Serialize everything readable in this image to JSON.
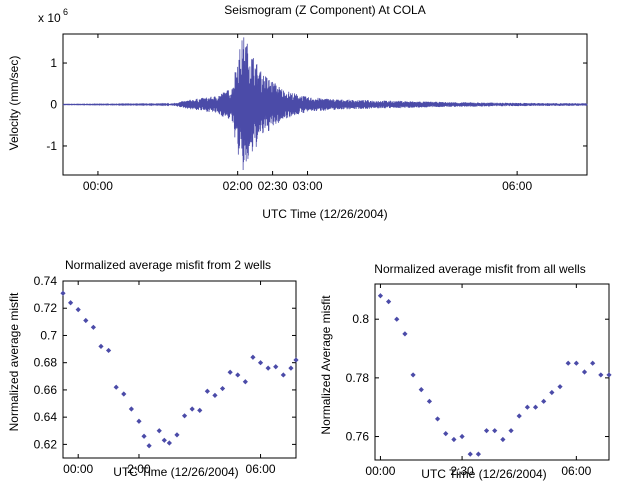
{
  "chart_data": [
    {
      "type": "line",
      "title": "Seismogram (Z Component) At COLA",
      "xlabel": "UTC Time (12/26/2004)",
      "ylabel": "Velocity (mm/sec)",
      "y_exponent_label": "x 10",
      "y_exponent": "6",
      "xlim": [
        "23:30",
        "07:00"
      ],
      "ylim": [
        -1.7,
        1.7
      ],
      "x_ticks": [
        "00:00",
        "02:00",
        "02:30",
        "03:00",
        "06:00"
      ],
      "y_ticks": [
        "-1",
        "0",
        "1"
      ],
      "series": [
        {
          "values_description_only": false,
          "color": "#4b4ba8",
          "envelope": {
            "x": [
              "23:30",
              "01:00",
              "01:20",
              "01:40",
              "01:55",
              "02:00",
              "02:05",
              "02:10",
              "02:20",
              "02:40",
              "03:00",
              "03:30",
              "04:00",
              "05:00",
              "06:00",
              "07:00"
            ],
            "amplitude_1e6": [
              0.005,
              0.01,
              0.12,
              0.2,
              0.4,
              1.2,
              1.7,
              1.4,
              0.8,
              0.35,
              0.18,
              0.12,
              0.1,
              0.06,
              0.04,
              0.03
            ]
          }
        }
      ]
    },
    {
      "type": "scatter",
      "title": "Normalized average misfit from 2 wells",
      "xlabel": "UTC Time (12/26/2004)",
      "ylabel": "Normalized average misfit",
      "xlim": [
        "23:30",
        "07:10"
      ],
      "ylim": [
        0.61,
        0.74
      ],
      "x_ticks": [
        "00:00",
        "2:00",
        "06:00"
      ],
      "y_ticks": [
        "0.62",
        "0.64",
        "0.66",
        "0.68",
        "0.7",
        "0.72",
        "0.74"
      ],
      "color": "#4b4ba8",
      "points": [
        [
          "23:30",
          0.731
        ],
        [
          "23:45",
          0.724
        ],
        [
          "00:00",
          0.719
        ],
        [
          "00:15",
          0.711
        ],
        [
          "00:30",
          0.706
        ],
        [
          "00:45",
          0.692
        ],
        [
          "01:00",
          0.689
        ],
        [
          "01:15",
          0.662
        ],
        [
          "01:30",
          0.657
        ],
        [
          "01:45",
          0.646
        ],
        [
          "02:00",
          0.637
        ],
        [
          "02:10",
          0.626
        ],
        [
          "02:20",
          0.619
        ],
        [
          "02:40",
          0.63
        ],
        [
          "02:50",
          0.623
        ],
        [
          "03:00",
          0.621
        ],
        [
          "03:15",
          0.627
        ],
        [
          "03:30",
          0.641
        ],
        [
          "03:45",
          0.646
        ],
        [
          "04:00",
          0.645
        ],
        [
          "04:15",
          0.659
        ],
        [
          "04:30",
          0.656
        ],
        [
          "04:45",
          0.661
        ],
        [
          "05:00",
          0.673
        ],
        [
          "05:15",
          0.671
        ],
        [
          "05:30",
          0.666
        ],
        [
          "05:45",
          0.684
        ],
        [
          "06:00",
          0.68
        ],
        [
          "06:15",
          0.676
        ],
        [
          "06:30",
          0.677
        ],
        [
          "06:45",
          0.671
        ],
        [
          "07:00",
          0.676
        ],
        [
          "07:10",
          0.682
        ]
      ]
    },
    {
      "type": "scatter",
      "title": "Normalized average misfit from all wells",
      "xlabel": "UTC Time (12/26/2004)",
      "ylabel": "Normalized Average misfit",
      "xlim": [
        "23:50",
        "07:00"
      ],
      "ylim": [
        0.752,
        0.812
      ],
      "x_ticks": [
        "00:00",
        "2:30",
        "06:00"
      ],
      "y_ticks": [
        "0.76",
        "0.78",
        "0.8"
      ],
      "color": "#4b4ba8",
      "points": [
        [
          "00:00",
          0.808
        ],
        [
          "00:15",
          0.806
        ],
        [
          "00:30",
          0.8
        ],
        [
          "00:45",
          0.795
        ],
        [
          "01:00",
          0.781
        ],
        [
          "01:15",
          0.776
        ],
        [
          "01:30",
          0.772
        ],
        [
          "01:45",
          0.766
        ],
        [
          "02:00",
          0.761
        ],
        [
          "02:15",
          0.759
        ],
        [
          "02:30",
          0.76
        ],
        [
          "02:45",
          0.754
        ],
        [
          "03:00",
          0.754
        ],
        [
          "03:15",
          0.762
        ],
        [
          "03:30",
          0.762
        ],
        [
          "03:45",
          0.759
        ],
        [
          "04:00",
          0.762
        ],
        [
          "04:15",
          0.767
        ],
        [
          "04:30",
          0.77
        ],
        [
          "04:45",
          0.77
        ],
        [
          "05:00",
          0.772
        ],
        [
          "05:15",
          0.775
        ],
        [
          "05:30",
          0.777
        ],
        [
          "05:45",
          0.785
        ],
        [
          "06:00",
          0.785
        ],
        [
          "06:15",
          0.782
        ],
        [
          "06:30",
          0.785
        ],
        [
          "06:45",
          0.781
        ],
        [
          "07:00",
          0.781
        ]
      ]
    }
  ]
}
